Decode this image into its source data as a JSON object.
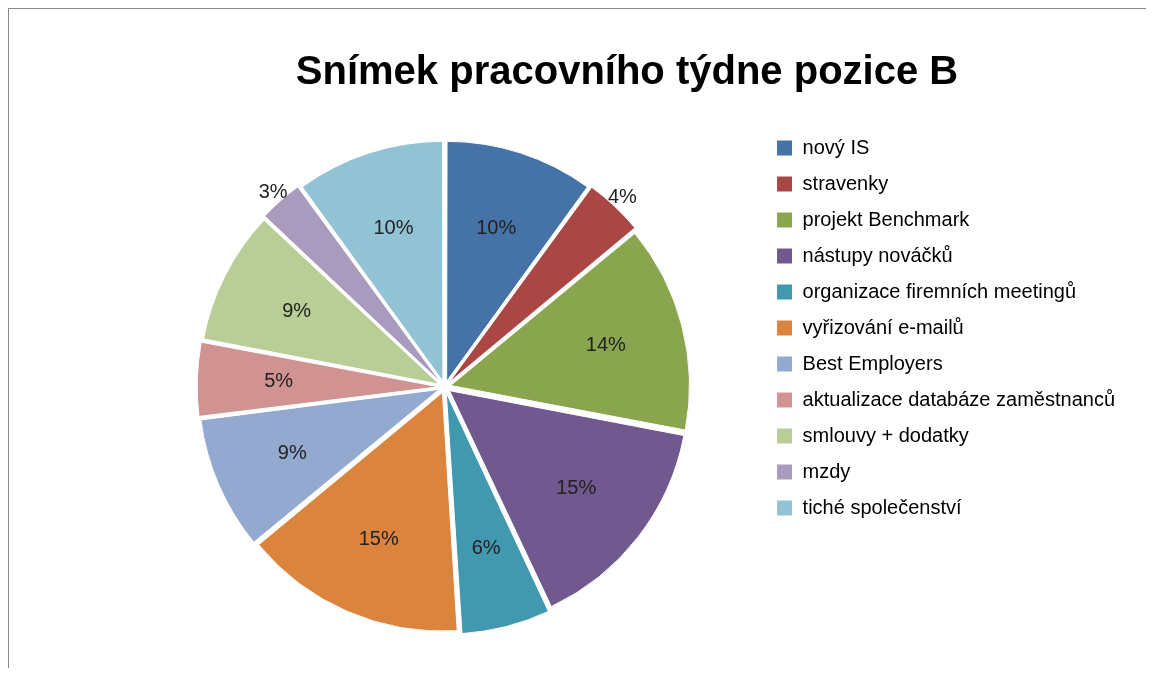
{
  "chart_data": {
    "type": "pie",
    "title": "Snímek pracovního týdne pozice B",
    "categories": [
      "nový IS",
      "stravenky",
      "projekt Benchmark",
      "nástupy nováčků",
      "organizace firemních meetingů",
      "vyřizování e-mailů",
      "Best Employers",
      "aktualizace databáze zaměstnanců",
      "smlouvy + dodatky",
      "mzdy",
      "tiché společenství"
    ],
    "values": [
      10,
      4,
      14,
      15,
      6,
      15,
      9,
      5,
      9,
      3,
      10
    ],
    "value_labels": [
      "10%",
      "4%",
      "14%",
      "15%",
      "6%",
      "15%",
      "9%",
      "5%",
      "9%",
      "3%",
      "10%"
    ],
    "colors": [
      "#4572a7",
      "#aa4643",
      "#89a54e",
      "#71588f",
      "#4198af",
      "#db843d",
      "#93a9cf",
      "#d19392",
      "#b9cd96",
      "#a99bbd",
      "#92c3d4"
    ],
    "legend": "right"
  }
}
